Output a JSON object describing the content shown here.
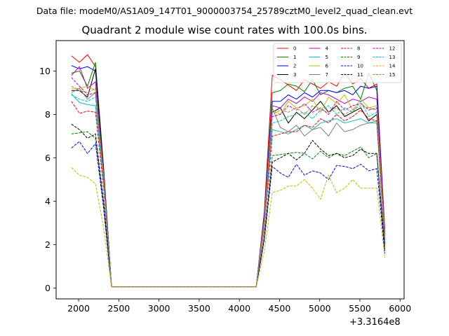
{
  "figure": {
    "supertitle": "Data file: modeM0/AS1A09_147T01_9000003754_25789cztM0_level2_quad_clean.evt",
    "title": "Quadrant 2 module wise count rates with 100.0s bins.",
    "x_offset_label": "+3.3164e8"
  },
  "chart_data": {
    "type": "line",
    "title": "Quadrant 2 module wise count rates with 100.0s bins.",
    "xlabel": "",
    "ylabel": "",
    "x_offset": "+3.3164e8",
    "xlim": [
      1720,
      6050
    ],
    "ylim": [
      -0.5,
      11.4
    ],
    "xticks": [
      2000,
      2500,
      3000,
      3500,
      4000,
      4500,
      5000,
      5500,
      6000
    ],
    "yticks": [
      0,
      2,
      4,
      6,
      8,
      10
    ],
    "grid": false,
    "legend": {
      "location": "top-right",
      "columns": 4
    },
    "x": [
      1910,
      2010,
      2110,
      2210,
      2310,
      2410,
      2510,
      2610,
      2710,
      2810,
      2910,
      3010,
      3110,
      3210,
      3310,
      3410,
      3510,
      3610,
      3710,
      3810,
      3910,
      4010,
      4110,
      4210,
      4310,
      4410,
      4510,
      4610,
      4710,
      4810,
      4910,
      5010,
      5110,
      5210,
      5310,
      5410,
      5510,
      5610,
      5710,
      5810
    ],
    "series": [
      {
        "name": "0",
        "color": "#ff0000",
        "dash": false,
        "values": [
          10.7,
          10.4,
          10.75,
          10.2,
          5.5,
          0.05,
          0.05,
          0.05,
          0.05,
          0.05,
          0.05,
          0.05,
          0.05,
          0.05,
          0.05,
          0.05,
          0.05,
          0.05,
          0.05,
          0.05,
          0.05,
          0.05,
          0.05,
          0.05,
          3.5,
          9.8,
          9.6,
          9.35,
          9.1,
          9.6,
          9.4,
          9.2,
          9.5,
          9.3,
          9.9,
          9.4,
          9.65,
          9.2,
          9.4,
          2.7
        ]
      },
      {
        "name": "1",
        "color": "#008000",
        "dash": false,
        "values": [
          9.9,
          10.0,
          9.3,
          10.4,
          5.6,
          0.05,
          0.05,
          0.05,
          0.05,
          0.05,
          0.05,
          0.05,
          0.05,
          0.05,
          0.05,
          0.05,
          0.05,
          0.05,
          0.05,
          0.05,
          0.05,
          0.05,
          0.05,
          0.05,
          3.3,
          9.0,
          9.1,
          9.4,
          9.3,
          9.05,
          9.6,
          8.9,
          9.1,
          9.0,
          9.2,
          9.3,
          8.7,
          9.9,
          9.1,
          2.6
        ]
      },
      {
        "name": "2",
        "color": "#0000ff",
        "dash": false,
        "values": [
          10.25,
          10.1,
          10.2,
          10.0,
          5.5,
          0.05,
          0.05,
          0.05,
          0.05,
          0.05,
          0.05,
          0.05,
          0.05,
          0.05,
          0.05,
          0.05,
          0.05,
          0.05,
          0.05,
          0.05,
          0.05,
          0.05,
          0.05,
          0.05,
          3.4,
          8.6,
          8.6,
          8.9,
          8.7,
          9.0,
          8.8,
          9.1,
          9.1,
          9.0,
          9.1,
          8.9,
          9.3,
          9.2,
          9.3,
          2.5
        ]
      },
      {
        "name": "3",
        "color": "#000000",
        "dash": false,
        "values": [
          9.1,
          9.1,
          8.8,
          10.1,
          5.4,
          0.05,
          0.05,
          0.05,
          0.05,
          0.05,
          0.05,
          0.05,
          0.05,
          0.05,
          0.05,
          0.05,
          0.05,
          0.05,
          0.05,
          0.05,
          0.05,
          0.05,
          0.05,
          0.05,
          3.0,
          8.1,
          8.3,
          7.6,
          8.1,
          7.8,
          8.2,
          8.6,
          8.1,
          8.4,
          7.9,
          8.1,
          8.3,
          7.7,
          8.0,
          2.2
        ]
      },
      {
        "name": "4",
        "color": "#bf00bf",
        "dash": false,
        "values": [
          9.8,
          10.2,
          9.2,
          9.5,
          5.3,
          0.05,
          0.05,
          0.05,
          0.05,
          0.05,
          0.05,
          0.05,
          0.05,
          0.05,
          0.05,
          0.05,
          0.05,
          0.05,
          0.05,
          0.05,
          0.05,
          0.05,
          0.05,
          0.05,
          3.2,
          8.4,
          8.3,
          8.7,
          8.5,
          8.8,
          8.6,
          9.0,
          8.9,
          8.7,
          8.5,
          8.7,
          8.6,
          8.8,
          8.7,
          2.4
        ]
      },
      {
        "name": "5",
        "color": "#00bfbf",
        "dash": false,
        "values": [
          8.95,
          8.55,
          8.45,
          8.4,
          4.9,
          0.05,
          0.05,
          0.05,
          0.05,
          0.05,
          0.05,
          0.05,
          0.05,
          0.05,
          0.05,
          0.05,
          0.05,
          0.05,
          0.05,
          0.05,
          0.05,
          0.05,
          0.05,
          0.05,
          2.9,
          7.3,
          7.2,
          7.1,
          7.3,
          7.5,
          7.3,
          7.6,
          7.7,
          7.8,
          7.6,
          7.7,
          7.8,
          7.6,
          7.6,
          2.1
        ]
      },
      {
        "name": "6",
        "color": "#bfbf00",
        "dash": false,
        "values": [
          9.2,
          9.2,
          9.3,
          9.1,
          5.2,
          0.05,
          0.05,
          0.05,
          0.05,
          0.05,
          0.05,
          0.05,
          0.05,
          0.05,
          0.05,
          0.05,
          0.05,
          0.05,
          0.05,
          0.05,
          0.05,
          0.05,
          0.05,
          0.05,
          3.1,
          8.2,
          8.0,
          8.6,
          8.3,
          8.4,
          8.7,
          8.1,
          8.8,
          8.5,
          8.9,
          8.2,
          8.7,
          8.3,
          8.4,
          2.3
        ]
      },
      {
        "name": "7",
        "color": "#808080",
        "dash": false,
        "values": [
          9.0,
          9.2,
          8.7,
          9.0,
          5.1,
          0.05,
          0.05,
          0.05,
          0.05,
          0.05,
          0.05,
          0.05,
          0.05,
          0.05,
          0.05,
          0.05,
          0.05,
          0.05,
          0.05,
          0.05,
          0.05,
          0.05,
          0.05,
          0.05,
          2.8,
          8.3,
          7.4,
          7.2,
          7.5,
          7.0,
          7.3,
          7.4,
          7.0,
          7.6,
          7.2,
          7.3,
          7.5,
          7.6,
          7.7,
          2.1
        ]
      },
      {
        "name": "8",
        "color": "#ff0000",
        "dash": true,
        "values": [
          8.6,
          8.05,
          8.15,
          8.1,
          4.6,
          0.05,
          0.05,
          0.05,
          0.05,
          0.05,
          0.05,
          0.05,
          0.05,
          0.05,
          0.05,
          0.05,
          0.05,
          0.05,
          0.05,
          0.05,
          0.05,
          0.05,
          0.05,
          0.05,
          2.7,
          7.0,
          7.1,
          7.2,
          7.2,
          7.5,
          7.4,
          7.8,
          7.6,
          8.0,
          7.7,
          7.9,
          8.2,
          7.8,
          7.7,
          2.0
        ]
      },
      {
        "name": "9",
        "color": "#008000",
        "dash": true,
        "values": [
          7.1,
          7.15,
          7.2,
          6.9,
          3.9,
          0.05,
          0.05,
          0.05,
          0.05,
          0.05,
          0.05,
          0.05,
          0.05,
          0.05,
          0.05,
          0.05,
          0.05,
          0.05,
          0.05,
          0.05,
          0.05,
          0.05,
          0.05,
          0.05,
          2.3,
          6.1,
          6.15,
          6.2,
          6.25,
          6.2,
          5.95,
          6.3,
          6.0,
          6.2,
          6.1,
          6.3,
          6.5,
          6.0,
          6.2,
          1.7
        ]
      },
      {
        "name": "10",
        "color": "#0000ff",
        "dash": true,
        "values": [
          6.45,
          6.75,
          6.2,
          6.65,
          3.7,
          0.05,
          0.05,
          0.05,
          0.05,
          0.05,
          0.05,
          0.05,
          0.05,
          0.05,
          0.05,
          0.05,
          0.05,
          0.05,
          0.05,
          0.05,
          0.05,
          0.05,
          0.05,
          0.05,
          2.2,
          5.6,
          5.3,
          5.1,
          5.7,
          5.2,
          5.4,
          5.3,
          5.0,
          5.65,
          5.6,
          5.5,
          5.7,
          5.4,
          5.5,
          1.6
        ]
      },
      {
        "name": "11",
        "color": "#000000",
        "dash": true,
        "values": [
          7.55,
          7.3,
          6.9,
          7.1,
          4.0,
          0.05,
          0.05,
          0.05,
          0.05,
          0.05,
          0.05,
          0.05,
          0.05,
          0.05,
          0.05,
          0.05,
          0.05,
          0.05,
          0.05,
          0.05,
          0.05,
          0.05,
          0.05,
          0.05,
          2.3,
          5.8,
          6.0,
          6.2,
          5.9,
          6.2,
          6.8,
          6.4,
          6.1,
          6.2,
          6.0,
          6.1,
          6.4,
          6.2,
          6.2,
          1.8
        ]
      },
      {
        "name": "12",
        "color": "#bf00bf",
        "dash": true,
        "values": [
          9.7,
          9.3,
          8.9,
          9.0,
          5.0,
          0.05,
          0.05,
          0.05,
          0.05,
          0.05,
          0.05,
          0.05,
          0.05,
          0.05,
          0.05,
          0.05,
          0.05,
          0.05,
          0.05,
          0.05,
          0.05,
          0.05,
          0.05,
          0.05,
          2.9,
          7.9,
          8.0,
          8.4,
          8.2,
          8.5,
          8.1,
          8.3,
          8.0,
          8.6,
          8.2,
          8.4,
          8.5,
          8.2,
          8.3,
          2.2
        ]
      },
      {
        "name": "13",
        "color": "#00bfbf",
        "dash": true,
        "values": [
          8.9,
          8.7,
          8.6,
          8.8,
          4.8,
          0.05,
          0.05,
          0.05,
          0.05,
          0.05,
          0.05,
          0.05,
          0.05,
          0.05,
          0.05,
          0.05,
          0.05,
          0.05,
          0.05,
          0.05,
          0.05,
          0.05,
          0.05,
          0.05,
          2.8,
          7.6,
          7.7,
          7.9,
          8.0,
          8.1,
          7.8,
          8.2,
          8.4,
          8.0,
          8.3,
          8.1,
          8.6,
          7.9,
          8.1,
          2.1
        ]
      },
      {
        "name": "14",
        "color": "#bfbf00",
        "dash": true,
        "values": [
          5.55,
          5.2,
          5.1,
          4.8,
          2.8,
          0.05,
          0.05,
          0.05,
          0.05,
          0.05,
          0.05,
          0.05,
          0.05,
          0.05,
          0.05,
          0.05,
          0.05,
          0.05,
          0.05,
          0.05,
          0.05,
          0.05,
          0.05,
          0.05,
          1.7,
          4.4,
          4.5,
          4.7,
          4.7,
          5.0,
          4.6,
          4.1,
          5.2,
          4.4,
          4.6,
          5.0,
          4.6,
          4.6,
          4.6,
          1.4
        ]
      },
      {
        "name": "15",
        "color": "#bf8040",
        "dash": true,
        "values": [
          9.3,
          9.1,
          9.0,
          9.2,
          5.0,
          0.05,
          0.05,
          0.05,
          0.05,
          0.05,
          0.05,
          0.05,
          0.05,
          0.05,
          0.05,
          0.05,
          0.05,
          0.05,
          0.05,
          0.05,
          0.05,
          0.05,
          0.05,
          0.05,
          2.9,
          8.0,
          8.2,
          8.1,
          8.3,
          8.0,
          8.4,
          8.2,
          8.1,
          8.3,
          8.0,
          8.2,
          8.4,
          8.3,
          8.2,
          2.2
        ]
      }
    ]
  }
}
